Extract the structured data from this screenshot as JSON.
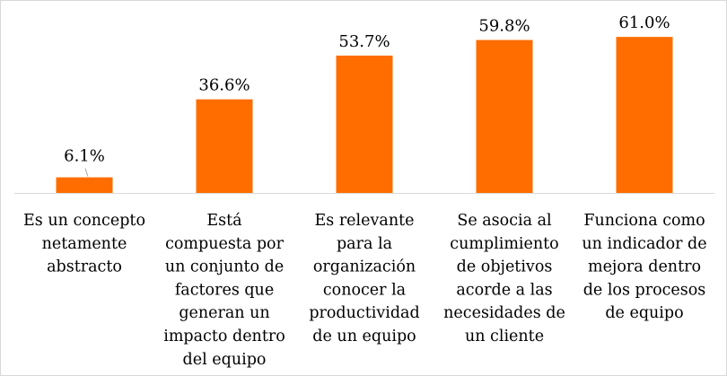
{
  "chart_data": {
    "type": "bar",
    "title": "",
    "xlabel": "",
    "ylabel": "",
    "ylim": [
      0,
      70
    ],
    "grid": false,
    "legend": "none",
    "bar_color": "#FF6D00",
    "categories": [
      [
        "Es un concepto",
        "netamente",
        "abstracto"
      ],
      [
        "Está",
        "compuesta por",
        "un conjunto de",
        "factores que",
        "generan un",
        "impacto dentro",
        "del equipo"
      ],
      [
        "Es relevante",
        "para la",
        "organización",
        "conocer la",
        "productividad",
        "de un equipo"
      ],
      [
        "Se asocia al",
        "cumplimiento",
        "de objetivos",
        "acorde a las",
        "necesidades de",
        "un cliente"
      ],
      [
        "Funciona como",
        "un indicador de",
        "mejora dentro",
        "de los procesos",
        "de equipo"
      ]
    ],
    "values": [
      6.1,
      36.6,
      53.7,
      59.8,
      61.0
    ],
    "data_labels": [
      "6.1%",
      "36.6%",
      "53.7%",
      "59.8%",
      "61.0%"
    ]
  }
}
